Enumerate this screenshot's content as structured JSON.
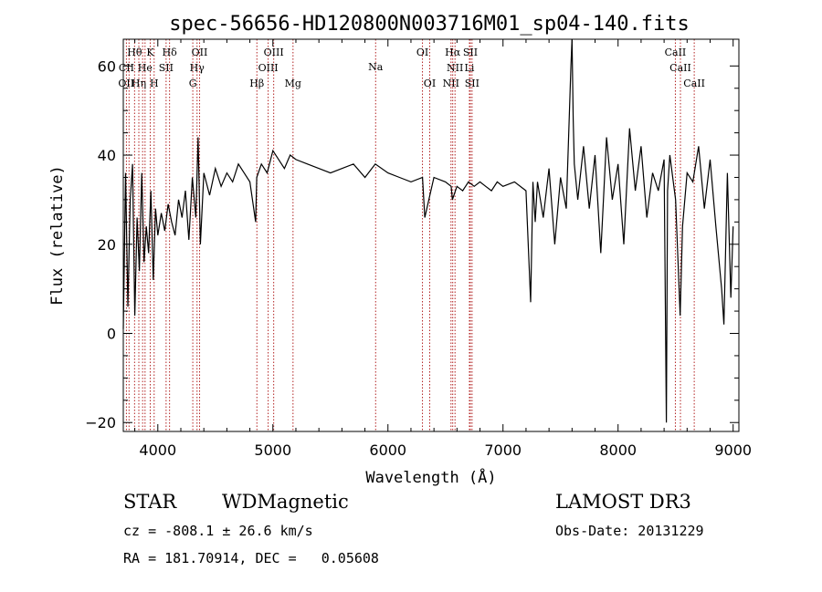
{
  "chart_data": {
    "type": "line",
    "title": "spec-56656-HD120800N003716M01_sp04-140.fits",
    "xlabel": "Wavelength (Å)",
    "ylabel": "Flux (relative)",
    "xlim": [
      3700,
      9050
    ],
    "ylim": [
      -22,
      66
    ],
    "xticks": [
      4000,
      5000,
      6000,
      7000,
      8000,
      9000
    ],
    "yticks": [
      -20,
      0,
      20,
      40,
      60
    ],
    "spectrum": {
      "name": "flux",
      "x": [
        3700,
        3720,
        3740,
        3760,
        3780,
        3800,
        3820,
        3840,
        3860,
        3880,
        3900,
        3920,
        3940,
        3960,
        3980,
        4000,
        4030,
        4060,
        4090,
        4120,
        4150,
        4180,
        4210,
        4240,
        4270,
        4300,
        4330,
        4350,
        4370,
        4400,
        4450,
        4500,
        4550,
        4600,
        4650,
        4700,
        4750,
        4800,
        4850,
        4860,
        4900,
        4950,
        5000,
        5050,
        5100,
        5150,
        5200,
        5300,
        5400,
        5500,
        5600,
        5700,
        5800,
        5890,
        6000,
        6100,
        6200,
        6300,
        6320,
        6400,
        6500,
        6550,
        6560,
        6600,
        6650,
        6700,
        6750,
        6800,
        6850,
        6900,
        6950,
        7000,
        7100,
        7200,
        7240,
        7260,
        7280,
        7300,
        7350,
        7400,
        7450,
        7500,
        7550,
        7590,
        7600,
        7610,
        7620,
        7650,
        7700,
        7750,
        7800,
        7850,
        7900,
        7950,
        8000,
        8050,
        8100,
        8150,
        8200,
        8250,
        8300,
        8350,
        8400,
        8420,
        8430,
        8450,
        8500,
        8540,
        8560,
        8600,
        8650,
        8700,
        8750,
        8800,
        8850,
        8900,
        8920,
        8950,
        8980,
        9000
      ],
      "y": [
        1,
        36,
        6,
        30,
        38,
        4,
        26,
        14,
        36,
        16,
        24,
        18,
        32,
        12,
        28,
        22,
        27,
        23,
        29,
        25,
        22,
        30,
        26,
        32,
        21,
        35,
        26,
        44,
        20,
        36,
        31,
        37,
        33,
        36,
        34,
        38,
        36,
        34,
        25,
        35,
        38,
        36,
        41,
        39,
        37,
        40,
        39,
        38,
        37,
        36,
        37,
        38,
        35,
        38,
        36,
        35,
        34,
        35,
        26,
        35,
        34,
        33,
        30,
        33,
        32,
        34,
        33,
        34,
        33,
        32,
        34,
        33,
        34,
        32,
        7,
        34,
        25,
        34,
        26,
        37,
        20,
        35,
        28,
        60,
        66,
        48,
        38,
        30,
        42,
        28,
        40,
        18,
        44,
        30,
        38,
        20,
        46,
        32,
        42,
        26,
        36,
        32,
        39,
        -20,
        32,
        40,
        30,
        4,
        24,
        36,
        34,
        42,
        28,
        39,
        24,
        10,
        2,
        36,
        8,
        24
      ]
    },
    "spectral_lines": [
      {
        "label": "Hθ",
        "row": 1,
        "x": 3798
      },
      {
        "label": "K",
        "row": 1,
        "x": 3934
      },
      {
        "label": "Hδ",
        "row": 1,
        "x": 4102
      },
      {
        "label": "OII",
        "row": 1,
        "x": 4363
      },
      {
        "label": "OIII",
        "row": 1,
        "x": 5007
      },
      {
        "label": "OI",
        "row": 1,
        "x": 6300
      },
      {
        "label": "Hα",
        "row": 1,
        "x": 6563
      },
      {
        "label": "SII",
        "row": 1,
        "x": 6716
      },
      {
        "label": "CaII",
        "row": 1,
        "x": 8498
      },
      {
        "label": "CII",
        "row": 2,
        "x": 3727
      },
      {
        "label": "He",
        "row": 2,
        "x": 3889
      },
      {
        "label": "SII",
        "row": 2,
        "x": 4072
      },
      {
        "label": "Hγ",
        "row": 2,
        "x": 4341
      },
      {
        "label": "OIII",
        "row": 2,
        "x": 4959
      },
      {
        "label": "NII",
        "row": 2,
        "x": 6583
      },
      {
        "label": "Li",
        "row": 2,
        "x": 6708
      },
      {
        "label": "CaII",
        "row": 2,
        "x": 8542
      },
      {
        "label": "OII",
        "row": 3,
        "x": 3726
      },
      {
        "label": "Hη",
        "row": 3,
        "x": 3835
      },
      {
        "label": "H",
        "row": 3,
        "x": 3968
      },
      {
        "label": "G",
        "row": 3,
        "x": 4304
      },
      {
        "label": "Hβ",
        "row": 3,
        "x": 4861
      },
      {
        "label": "Mg",
        "row": 3,
        "x": 5175
      },
      {
        "label": "Na",
        "row": 1.5,
        "x": 5893
      },
      {
        "label": "OI",
        "row": 3,
        "x": 6363
      },
      {
        "label": "NII",
        "row": 3,
        "x": 6548
      },
      {
        "label": "SII",
        "row": 3,
        "x": 6731
      },
      {
        "label": "CaII",
        "row": 3,
        "x": 8662
      }
    ],
    "line_marker_x": [
      3727,
      3750,
      3798,
      3835,
      3868,
      3889,
      3934,
      3968,
      4072,
      4102,
      4304,
      4341,
      4363,
      4861,
      4959,
      5007,
      5175,
      5893,
      6300,
      6363,
      6548,
      6563,
      6583,
      6708,
      6716,
      6731,
      8498,
      8542,
      8662
    ],
    "line_color": "#b22222"
  },
  "info": {
    "object_class": "STAR",
    "subclass": "WDMagnetic",
    "survey": "LAMOST DR3",
    "redshift": "cz = -808.1 ± 26.6 km/s",
    "obs_date": "Obs-Date: 20131229",
    "coords": "RA = 181.70914, DEC =   0.05608"
  }
}
